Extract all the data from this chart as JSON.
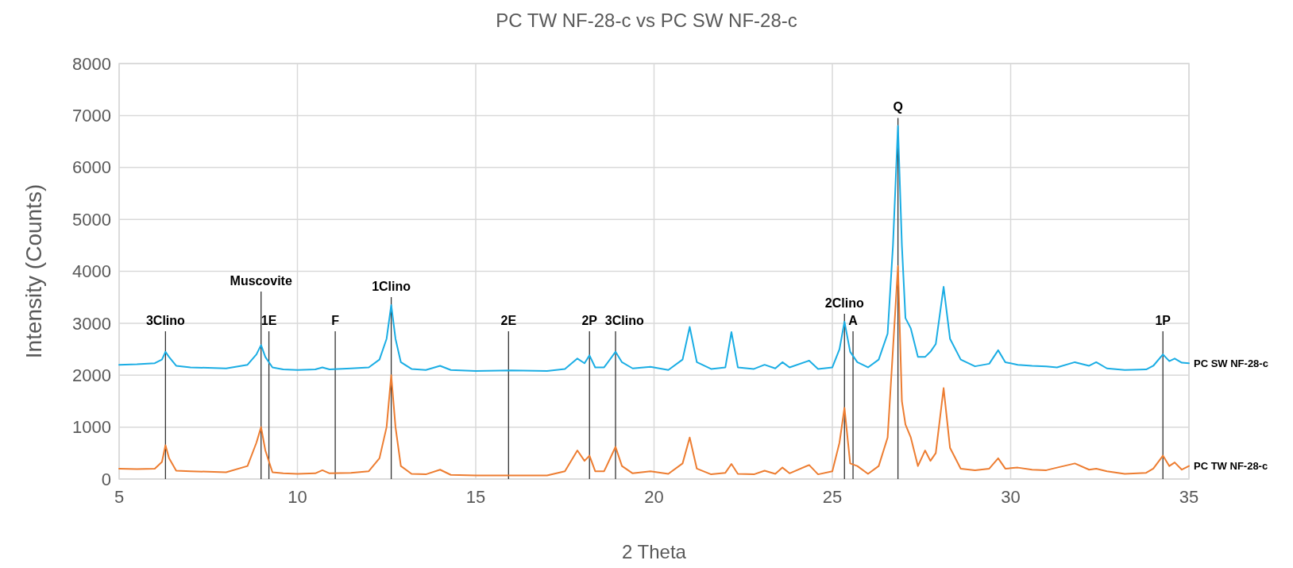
{
  "chart_data": {
    "type": "line",
    "title": "PC TW NF-28-c vs PC SW NF-28-c",
    "xlabel": "2 Theta",
    "ylabel": "Intensity (Counts)",
    "x": [
      5,
      5.5,
      6,
      6.2,
      6.3,
      6.4,
      6.6,
      7,
      8,
      8.6,
      8.85,
      8.98,
      9.1,
      9.3,
      9.6,
      10,
      10.5,
      10.7,
      10.9,
      11.5,
      12,
      12.3,
      12.5,
      12.63,
      12.75,
      12.9,
      13.2,
      13.6,
      14,
      14.3,
      15,
      16,
      17,
      17.5,
      17.85,
      18.05,
      18.19,
      18.35,
      18.6,
      18.92,
      19.1,
      19.4,
      19.9,
      20.4,
      20.8,
      21.0,
      21.2,
      21.6,
      22.0,
      22.17,
      22.35,
      22.8,
      23.1,
      23.4,
      23.6,
      23.8,
      24.35,
      24.6,
      25.0,
      25.2,
      25.34,
      25.5,
      25.7,
      26.0,
      26.3,
      26.55,
      26.7,
      26.84,
      26.95,
      27.05,
      27.2,
      27.4,
      27.6,
      27.75,
      27.9,
      28.12,
      28.3,
      28.6,
      29.0,
      29.4,
      29.65,
      29.85,
      30.2,
      30.6,
      31.0,
      31.3,
      31.8,
      32.2,
      32.4,
      32.7,
      33.2,
      33.8,
      34.0,
      34.27,
      34.45,
      34.6,
      34.8,
      35
    ],
    "series": [
      {
        "name": "PC SW NF-28-c",
        "color": "#1aade4",
        "values": [
          2200,
          2210,
          2230,
          2300,
          2450,
          2350,
          2180,
          2150,
          2130,
          2200,
          2400,
          2580,
          2350,
          2150,
          2110,
          2100,
          2110,
          2150,
          2110,
          2130,
          2150,
          2300,
          2700,
          3350,
          2700,
          2250,
          2120,
          2100,
          2180,
          2100,
          2080,
          2090,
          2080,
          2120,
          2320,
          2230,
          2380,
          2150,
          2150,
          2450,
          2250,
          2130,
          2160,
          2100,
          2300,
          2930,
          2250,
          2120,
          2150,
          2830,
          2150,
          2120,
          2200,
          2130,
          2250,
          2150,
          2280,
          2120,
          2150,
          2500,
          3030,
          2450,
          2250,
          2150,
          2300,
          2800,
          4500,
          6800,
          4500,
          3100,
          2900,
          2350,
          2350,
          2450,
          2600,
          3700,
          2700,
          2300,
          2170,
          2220,
          2480,
          2250,
          2200,
          2180,
          2170,
          2150,
          2250,
          2180,
          2250,
          2130,
          2100,
          2110,
          2180,
          2400,
          2270,
          2320,
          2240,
          2230
        ]
      },
      {
        "name": "PC TW NF-28-c",
        "color": "#ed7d31",
        "values": [
          200,
          190,
          200,
          330,
          650,
          400,
          160,
          150,
          130,
          250,
          700,
          1000,
          550,
          130,
          110,
          100,
          110,
          170,
          110,
          120,
          150,
          400,
          1000,
          2000,
          1000,
          250,
          100,
          90,
          180,
          80,
          70,
          70,
          70,
          150,
          550,
          350,
          450,
          150,
          150,
          620,
          250,
          110,
          150,
          100,
          300,
          800,
          200,
          90,
          120,
          290,
          100,
          90,
          160,
          100,
          220,
          110,
          270,
          90,
          150,
          700,
          1370,
          300,
          250,
          100,
          250,
          800,
          2500,
          4100,
          1500,
          1050,
          800,
          250,
          550,
          350,
          500,
          1750,
          600,
          200,
          170,
          200,
          400,
          200,
          220,
          180,
          170,
          220,
          300,
          180,
          200,
          150,
          100,
          120,
          200,
          450,
          250,
          320,
          180,
          250
        ]
      }
    ],
    "ref_lines": [
      {
        "axis": "x",
        "value": 6.3,
        "label": "3Clino"
      },
      {
        "axis": "x",
        "value": 8.98,
        "label": "Muscovite"
      },
      {
        "axis": "x",
        "value": 9.2,
        "label": "1E"
      },
      {
        "axis": "x",
        "value": 11.06,
        "label": "F"
      },
      {
        "axis": "x",
        "value": 12.63,
        "label": "1Clino"
      },
      {
        "axis": "x",
        "value": 15.92,
        "label": "2E"
      },
      {
        "axis": "x",
        "value": 18.19,
        "label": "2P"
      },
      {
        "axis": "x",
        "value": 18.92,
        "label": "3Clino"
      },
      {
        "axis": "x",
        "value": 25.34,
        "label": "2Clino"
      },
      {
        "axis": "x",
        "value": 25.58,
        "label": "A"
      },
      {
        "axis": "x",
        "value": 26.84,
        "label": "Q"
      },
      {
        "axis": "x",
        "value": 34.27,
        "label": "1P"
      }
    ],
    "xlim": [
      5,
      35
    ],
    "xticks": [
      5,
      10,
      15,
      20,
      25,
      30,
      35
    ],
    "ylim": [
      0,
      8000
    ],
    "yticks": [
      0,
      1000,
      2000,
      3000,
      4000,
      5000,
      6000,
      7000,
      8000
    ],
    "grid": true,
    "legend": false,
    "marker": "none",
    "line_style": "solid"
  }
}
